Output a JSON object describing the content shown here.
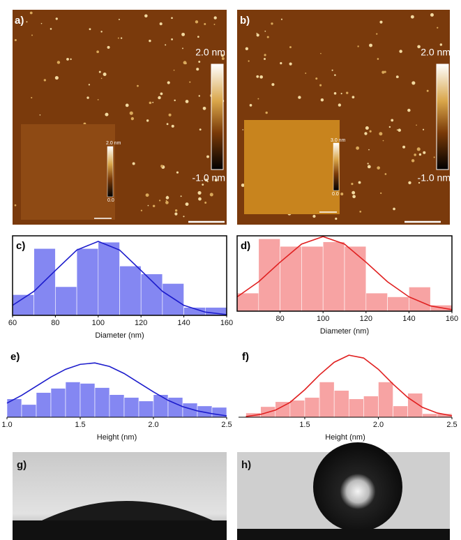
{
  "afm": [
    {
      "label": "a)",
      "colorbar_max": "2.0 nm",
      "colorbar_min": "-1.0 nm",
      "inset_max": "2.0 nm",
      "inset_min": "0.0"
    },
    {
      "label": "b)",
      "colorbar_max": "2.0 nm",
      "colorbar_min": "-1.0 nm",
      "inset_max": "3.0 nm",
      "inset_min": "0.0"
    }
  ],
  "photos": [
    {
      "label": "g)"
    },
    {
      "label": "h)"
    }
  ],
  "chart_data": [
    {
      "type": "histogram",
      "label": "c)",
      "xlabel": "Diameter (nm)",
      "bins": [
        60,
        70,
        80,
        90,
        100,
        110,
        120,
        130,
        140,
        150,
        160
      ],
      "values": [
        2.6,
        8.4,
        3.6,
        8.4,
        9.2,
        6.2,
        5.2,
        4.0,
        1.0,
        1.0
      ],
      "color": "#8487f2",
      "fit": {
        "x": [
          60,
          70,
          80,
          90,
          100,
          110,
          120,
          130,
          140,
          150,
          160
        ],
        "values": [
          1.26,
          3.02,
          5.64,
          8.21,
          9.3,
          8.21,
          5.64,
          3.02,
          1.26,
          0.41,
          0.1
        ],
        "color": "#1c1ccc"
      },
      "xlim": [
        60,
        160
      ],
      "ylim": [
        0,
        10
      ],
      "xticks": [
        60,
        80,
        100,
        120,
        140,
        160
      ],
      "frame": true
    },
    {
      "type": "histogram",
      "label": "d)",
      "xlabel": "Diameter (nm)",
      "bins": [
        60,
        70,
        80,
        90,
        100,
        110,
        120,
        130,
        140,
        150,
        160
      ],
      "values": [
        2.4,
        9.6,
        8.6,
        8.6,
        9.2,
        8.6,
        2.4,
        1.9,
        3.2,
        0.8
      ],
      "color": "#f7a3a3",
      "fit": {
        "x": [
          60,
          70,
          80,
          90,
          100,
          110,
          120,
          130,
          140,
          150,
          160
        ],
        "values": [
          1.9,
          3.9,
          6.5,
          8.9,
          9.9,
          8.9,
          6.5,
          3.9,
          1.9,
          0.7,
          0.2
        ],
        "color": "#e02020"
      },
      "xlim": [
        60,
        160
      ],
      "ylim": [
        0,
        10
      ],
      "xticks": [
        80,
        100,
        120,
        140,
        160
      ],
      "frame": true
    },
    {
      "type": "histogram",
      "label": "e)",
      "xlabel": "Height (nm)",
      "bins": [
        1.0,
        1.1,
        1.2,
        1.3,
        1.4,
        1.5,
        1.6,
        1.7,
        1.8,
        1.9,
        2.0,
        2.1,
        2.2,
        2.3,
        2.4,
        2.5
      ],
      "values": [
        2.6,
        1.8,
        3.5,
        4.1,
        5.0,
        4.8,
        4.2,
        3.2,
        2.8,
        2.3,
        3.2,
        2.8,
        2.0,
        1.6,
        1.4
      ],
      "color": "#8487f2",
      "fit": {
        "x": [
          1.0,
          1.1,
          1.2,
          1.3,
          1.4,
          1.5,
          1.6,
          1.7,
          1.8,
          1.9,
          2.0,
          2.1,
          2.2,
          2.3,
          2.4,
          2.5
        ],
        "values": [
          2.0,
          3.1,
          4.4,
          5.7,
          6.8,
          7.5,
          7.7,
          7.2,
          6.2,
          4.9,
          3.6,
          2.4,
          1.5,
          0.9,
          0.5,
          0.2
        ],
        "color": "#1c1ccc"
      },
      "xlim": [
        1.0,
        2.5
      ],
      "ylim": [
        0,
        10
      ],
      "xticks": [
        {
          "value": 1,
          "label": "1.0"
        },
        1.5,
        {
          "value": 2,
          "label": "2.0"
        },
        2.5
      ],
      "frame": false
    },
    {
      "type": "histogram",
      "label": "f)",
      "xlabel": "Height (nm)",
      "bins": [
        1.1,
        1.2,
        1.3,
        1.4,
        1.5,
        1.6,
        1.7,
        1.8,
        1.9,
        2.0,
        2.1,
        2.2,
        2.3,
        2.4,
        2.5
      ],
      "values": [
        0.6,
        1.5,
        2.2,
        2.4,
        2.8,
        5.0,
        3.8,
        2.6,
        3.0,
        5.0,
        1.6,
        3.4,
        0.5,
        0.5
      ],
      "color": "#f7a3a3",
      "fit": {
        "x": [
          1.1,
          1.2,
          1.3,
          1.4,
          1.5,
          1.6,
          1.7,
          1.8,
          1.9,
          2.0,
          2.1,
          2.2,
          2.3,
          2.4,
          2.5
        ],
        "values": [
          0.1,
          0.4,
          1.0,
          2.1,
          3.9,
          6.0,
          7.8,
          8.8,
          8.4,
          6.8,
          4.7,
          2.8,
          1.4,
          0.6,
          0.2
        ],
        "color": "#e02020"
      },
      "xlim": [
        1.05,
        2.5
      ],
      "ylim": [
        0,
        10
      ],
      "xticks": [
        1.5,
        {
          "value": 2,
          "label": "2.0"
        },
        2.5
      ],
      "frame": false
    }
  ]
}
